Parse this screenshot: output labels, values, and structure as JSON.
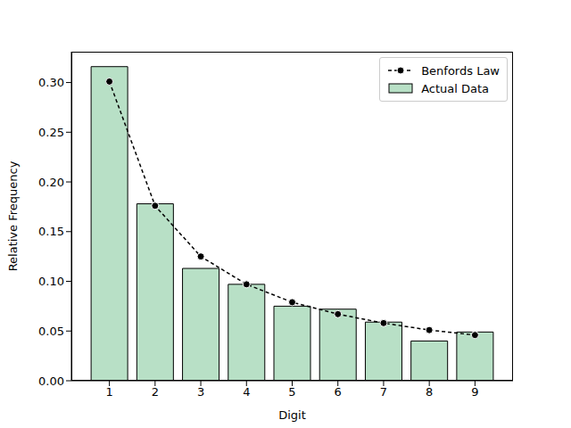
{
  "chart_data": {
    "type": "bar",
    "x_label": "Digit",
    "y_label": "Relative Frequency",
    "categories": [
      "1",
      "2",
      "3",
      "4",
      "5",
      "6",
      "7",
      "8",
      "9"
    ],
    "series": [
      {
        "name": "Benfords Law",
        "type": "line",
        "color": "#000000",
        "marker": "circle",
        "line_style": "dashed",
        "values": [
          0.301,
          0.176,
          0.125,
          0.097,
          0.079,
          0.067,
          0.058,
          0.051,
          0.046
        ]
      },
      {
        "name": "Actual Data",
        "type": "bar",
        "color": "#b8e0c6",
        "values": [
          0.316,
          0.178,
          0.113,
          0.097,
          0.075,
          0.072,
          0.059,
          0.04,
          0.049
        ]
      }
    ],
    "ylim": [
      0,
      0.331
    ],
    "yticks": [
      {
        "value": 0,
        "label": "0.00"
      },
      {
        "value": 0.05,
        "label": "0.05"
      },
      {
        "value": 0.1,
        "label": "0.10"
      },
      {
        "value": 0.15,
        "label": "0.15"
      },
      {
        "value": 0.2,
        "label": "0.20"
      },
      {
        "value": 0.25,
        "label": "0.25"
      },
      {
        "value": 0.3,
        "label": "0.30"
      }
    ],
    "legend": "upper right",
    "grid": false
  }
}
